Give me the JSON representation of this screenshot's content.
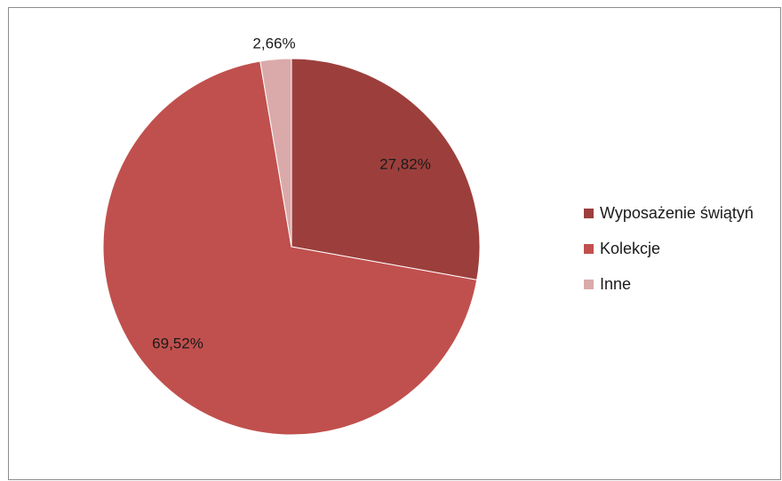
{
  "chart_data": {
    "type": "pie",
    "title": "",
    "start_angle_deg": 0,
    "direction": "clockwise",
    "slices": [
      {
        "label": "Wyposażenie świątyń",
        "value": 27.82,
        "value_label": "27,82%",
        "color": "#9c3f3c"
      },
      {
        "label": "Kolekcje",
        "value": 69.52,
        "value_label": "69,52%",
        "color": "#c0504d"
      },
      {
        "label": "Inne",
        "value": 2.66,
        "value_label": "2,66%",
        "color": "#d9aaa9"
      }
    ],
    "legend": "right"
  }
}
